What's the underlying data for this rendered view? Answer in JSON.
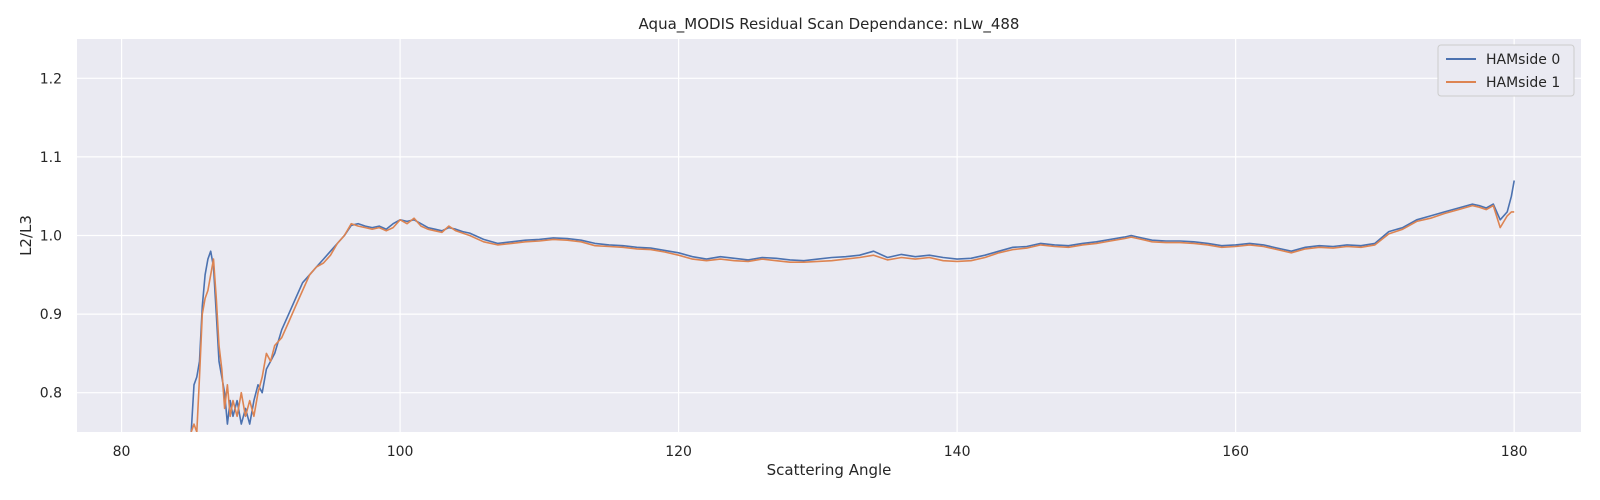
{
  "chart_data": {
    "type": "line",
    "title": "Aqua_MODIS Residual Scan Dependance: nLw_488",
    "xlabel": "Scattering Angle",
    "ylabel": "L2/L3",
    "xlim": [
      76.8,
      184.8
    ],
    "ylim": [
      0.75,
      1.25
    ],
    "xticks": [
      80,
      100,
      120,
      140,
      160,
      180
    ],
    "yticks": [
      0.8,
      0.9,
      1.0,
      1.1,
      1.2
    ],
    "grid": true,
    "legend_position": "top-right",
    "background_color": "#eaeaf2",
    "series": [
      {
        "name": "HAMside 0",
        "color": "#4c72b0",
        "x": [
          85.0,
          85.2,
          85.4,
          85.6,
          85.8,
          86.0,
          86.2,
          86.4,
          86.6,
          86.8,
          87.0,
          87.2,
          87.4,
          87.6,
          87.8,
          88.0,
          88.3,
          88.6,
          88.9,
          89.2,
          89.5,
          89.8,
          90.1,
          90.4,
          90.7,
          91.0,
          91.5,
          92.0,
          92.5,
          93.0,
          93.5,
          94.0,
          94.5,
          95.0,
          95.5,
          96.0,
          96.5,
          97.0,
          97.5,
          98.0,
          98.5,
          99.0,
          99.5,
          100.0,
          100.5,
          101.0,
          101.5,
          102.0,
          102.5,
          103.0,
          103.5,
          104.0,
          104.5,
          105.0,
          106.0,
          107.0,
          108.0,
          109.0,
          110.0,
          111.0,
          112.0,
          113.0,
          114.0,
          115.0,
          116.0,
          117.0,
          118.0,
          119.0,
          120.0,
          121.0,
          122.0,
          123.0,
          124.0,
          125.0,
          126.0,
          127.0,
          128.0,
          129.0,
          130.0,
          131.0,
          132.0,
          133.0,
          134.0,
          135.0,
          136.0,
          137.0,
          138.0,
          139.0,
          140.0,
          141.0,
          142.0,
          143.0,
          144.0,
          145.0,
          146.0,
          147.0,
          148.0,
          149.0,
          150.0,
          151.0,
          152.0,
          152.5,
          153.0,
          154.0,
          155.0,
          156.0,
          157.0,
          158.0,
          159.0,
          160.0,
          161.0,
          162.0,
          163.0,
          164.0,
          165.0,
          166.0,
          167.0,
          168.0,
          169.0,
          170.0,
          171.0,
          172.0,
          173.0,
          174.0,
          175.0,
          176.0,
          177.0,
          177.5,
          178.0,
          178.5,
          179.0,
          179.5,
          179.8,
          180.0
        ],
        "y": [
          0.75,
          0.81,
          0.82,
          0.84,
          0.91,
          0.95,
          0.97,
          0.98,
          0.96,
          0.9,
          0.84,
          0.82,
          0.8,
          0.76,
          0.79,
          0.77,
          0.79,
          0.76,
          0.78,
          0.76,
          0.79,
          0.81,
          0.8,
          0.83,
          0.84,
          0.85,
          0.88,
          0.9,
          0.92,
          0.94,
          0.95,
          0.96,
          0.97,
          0.98,
          0.99,
          1.0,
          1.013,
          1.015,
          1.012,
          1.01,
          1.012,
          1.008,
          1.015,
          1.02,
          1.018,
          1.02,
          1.015,
          1.01,
          1.008,
          1.006,
          1.01,
          1.008,
          1.005,
          1.003,
          0.995,
          0.99,
          0.992,
          0.994,
          0.995,
          0.997,
          0.996,
          0.994,
          0.99,
          0.988,
          0.987,
          0.985,
          0.984,
          0.981,
          0.978,
          0.973,
          0.97,
          0.973,
          0.971,
          0.969,
          0.972,
          0.971,
          0.969,
          0.968,
          0.97,
          0.972,
          0.973,
          0.975,
          0.98,
          0.972,
          0.976,
          0.973,
          0.975,
          0.972,
          0.97,
          0.971,
          0.975,
          0.98,
          0.985,
          0.986,
          0.99,
          0.988,
          0.987,
          0.99,
          0.992,
          0.995,
          0.998,
          1.0,
          0.998,
          0.994,
          0.993,
          0.993,
          0.992,
          0.99,
          0.987,
          0.988,
          0.99,
          0.988,
          0.984,
          0.98,
          0.985,
          0.987,
          0.986,
          0.988,
          0.987,
          0.99,
          1.005,
          1.01,
          1.02,
          1.025,
          1.03,
          1.035,
          1.04,
          1.038,
          1.035,
          1.04,
          1.02,
          1.03,
          1.05,
          1.07
        ]
      },
      {
        "name": "HAMside 1",
        "color": "#dd8452",
        "x": [
          85.0,
          85.2,
          85.4,
          85.6,
          85.8,
          86.0,
          86.2,
          86.4,
          86.6,
          86.8,
          87.0,
          87.2,
          87.4,
          87.6,
          87.8,
          88.0,
          88.3,
          88.6,
          88.9,
          89.2,
          89.5,
          89.8,
          90.1,
          90.4,
          90.7,
          91.0,
          91.5,
          92.0,
          92.5,
          93.0,
          93.5,
          94.0,
          94.5,
          95.0,
          95.5,
          96.0,
          96.5,
          97.0,
          97.5,
          98.0,
          98.5,
          99.0,
          99.5,
          100.0,
          100.5,
          101.0,
          101.5,
          102.0,
          102.5,
          103.0,
          103.5,
          104.0,
          104.5,
          105.0,
          106.0,
          107.0,
          108.0,
          109.0,
          110.0,
          111.0,
          112.0,
          113.0,
          114.0,
          115.0,
          116.0,
          117.0,
          118.0,
          119.0,
          120.0,
          121.0,
          122.0,
          123.0,
          124.0,
          125.0,
          126.0,
          127.0,
          128.0,
          129.0,
          130.0,
          131.0,
          132.0,
          133.0,
          134.0,
          135.0,
          136.0,
          137.0,
          138.0,
          139.0,
          140.0,
          141.0,
          142.0,
          143.0,
          144.0,
          145.0,
          146.0,
          147.0,
          148.0,
          149.0,
          150.0,
          151.0,
          152.0,
          152.5,
          153.0,
          154.0,
          155.0,
          156.0,
          157.0,
          158.0,
          159.0,
          160.0,
          161.0,
          162.0,
          163.0,
          164.0,
          165.0,
          166.0,
          167.0,
          168.0,
          169.0,
          170.0,
          171.0,
          172.0,
          173.0,
          174.0,
          175.0,
          176.0,
          177.0,
          177.5,
          178.0,
          178.5,
          179.0,
          179.5,
          179.8,
          180.0
        ],
        "y": [
          0.75,
          0.76,
          0.75,
          0.82,
          0.9,
          0.92,
          0.93,
          0.95,
          0.97,
          0.92,
          0.86,
          0.83,
          0.78,
          0.81,
          0.77,
          0.79,
          0.77,
          0.8,
          0.77,
          0.79,
          0.77,
          0.8,
          0.82,
          0.85,
          0.84,
          0.86,
          0.87,
          0.89,
          0.91,
          0.93,
          0.95,
          0.96,
          0.965,
          0.975,
          0.99,
          1.0,
          1.015,
          1.012,
          1.01,
          1.008,
          1.01,
          1.006,
          1.01,
          1.02,
          1.015,
          1.022,
          1.012,
          1.008,
          1.006,
          1.004,
          1.012,
          1.006,
          1.003,
          1.0,
          0.992,
          0.988,
          0.99,
          0.992,
          0.993,
          0.995,
          0.994,
          0.992,
          0.987,
          0.986,
          0.985,
          0.983,
          0.982,
          0.979,
          0.975,
          0.97,
          0.968,
          0.97,
          0.968,
          0.967,
          0.97,
          0.968,
          0.966,
          0.966,
          0.967,
          0.968,
          0.97,
          0.972,
          0.975,
          0.969,
          0.972,
          0.97,
          0.972,
          0.968,
          0.967,
          0.968,
          0.972,
          0.978,
          0.982,
          0.984,
          0.988,
          0.986,
          0.985,
          0.988,
          0.99,
          0.993,
          0.996,
          0.998,
          0.996,
          0.992,
          0.991,
          0.991,
          0.99,
          0.988,
          0.985,
          0.986,
          0.988,
          0.986,
          0.982,
          0.978,
          0.983,
          0.985,
          0.984,
          0.986,
          0.985,
          0.988,
          1.002,
          1.008,
          1.018,
          1.022,
          1.028,
          1.033,
          1.038,
          1.036,
          1.033,
          1.038,
          1.01,
          1.025,
          1.03,
          1.03
        ]
      }
    ]
  }
}
